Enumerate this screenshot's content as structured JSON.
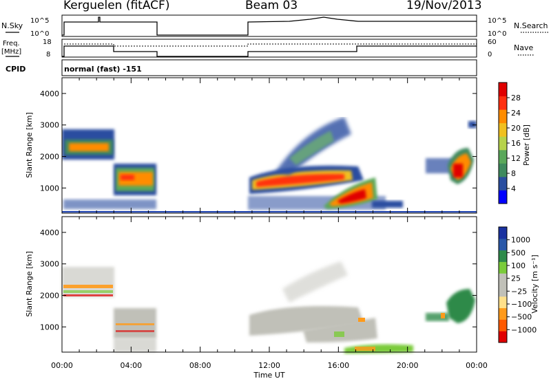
{
  "header": {
    "radar": "Kerguelen (fitACF)",
    "beam": "Beam 03",
    "date": "19/Nov/2013"
  },
  "sky_panel": {
    "left_label": "N.Sky",
    "right_label": "N.Search",
    "left_ticks": [
      "10^5",
      "10^0"
    ],
    "right_ticks": [
      "10^5",
      "10^0"
    ]
  },
  "freq_panel": {
    "left_label_line1": "Freq.",
    "left_label_line2": "[MHz]",
    "right_label": "Nave",
    "left_ticks": [
      "18",
      "8"
    ],
    "right_ticks": [
      "60",
      "0"
    ]
  },
  "cpid": {
    "label": "CPID",
    "mode": "normal (fast) -151"
  },
  "colors": {
    "power": [
      "#0000ff",
      "#2a4ea0",
      "#3f8a5e",
      "#5aa85a",
      "#b6d24a",
      "#f0c020",
      "#ff8c00",
      "#ff3010",
      "#e00000"
    ],
    "velocity": [
      "#e00000",
      "#ff5a00",
      "#ff9a1a",
      "#ffe08a",
      "#c0c0b8",
      "#c0c0b8",
      "#7acb3a",
      "#2e8a4a",
      "#2a58a8",
      "#1a32a0"
    ]
  },
  "chart_data": [
    {
      "type": "heatmap",
      "name": "power",
      "xlabel": "",
      "ylabel": "Slant Range [km]",
      "x_range_hours": [
        0,
        24
      ],
      "ylim": [
        200,
        4500
      ],
      "yticks": [
        1000,
        2000,
        3000,
        4000
      ],
      "colorbar": {
        "label": "Power [dB]",
        "ticks": [
          4,
          8,
          12,
          16,
          20,
          24,
          28
        ],
        "range": [
          0,
          32
        ]
      },
      "regions": [
        {
          "t": [
            0.0,
            3.0
          ],
          "range_km": [
            1800,
            2350
          ],
          "level": "high"
        },
        {
          "t": [
            3.0,
            5.4
          ],
          "range_km": [
            1000,
            1600
          ],
          "level": "high"
        },
        {
          "t": [
            10.7,
            17.0
          ],
          "range_km": [
            900,
            1700
          ],
          "level": "high"
        },
        {
          "t": [
            12.0,
            16.0
          ],
          "range_km": [
            2000,
            3500
          ],
          "level": "low"
        },
        {
          "t": [
            15.0,
            17.5
          ],
          "range_km": [
            450,
            1100
          ],
          "level": "very high"
        },
        {
          "t": [
            20.5,
            22.6
          ],
          "range_km": [
            1100,
            2300
          ],
          "level": "high"
        }
      ]
    },
    {
      "type": "heatmap",
      "name": "velocity",
      "xlabel": "Time UT",
      "ylabel": "Slant Range [km]",
      "x_range_hours": [
        0,
        24
      ],
      "ylim": [
        200,
        4500
      ],
      "yticks": [
        1000,
        2000,
        3000,
        4000
      ],
      "xtick_labels": [
        "00:00",
        "04:00",
        "08:00",
        "12:00",
        "16:00",
        "20:00",
        "00:00"
      ],
      "colorbar": {
        "label": "Velocity [m s⁻¹]",
        "ticks": [
          "1000",
          "500",
          "100",
          "25",
          "−25",
          "−100",
          "−500",
          "−1000"
        ]
      },
      "regions": [
        {
          "t": [
            0.0,
            3.0
          ],
          "range_km": [
            1800,
            2350
          ],
          "velocity": "mixed ±100"
        },
        {
          "t": [
            3.0,
            5.4
          ],
          "range_km": [
            600,
            1600
          ],
          "velocity": "near zero"
        },
        {
          "t": [
            10.7,
            17.0
          ],
          "range_km": [
            800,
            1700
          ],
          "velocity": "near zero"
        },
        {
          "t": [
            16.0,
            19.0
          ],
          "range_km": [
            350,
            600
          ],
          "velocity": "100 to 500"
        },
        {
          "t": [
            21.0,
            23.4
          ],
          "range_km": [
            1200,
            2100
          ],
          "velocity": "100 to 500"
        }
      ]
    }
  ]
}
